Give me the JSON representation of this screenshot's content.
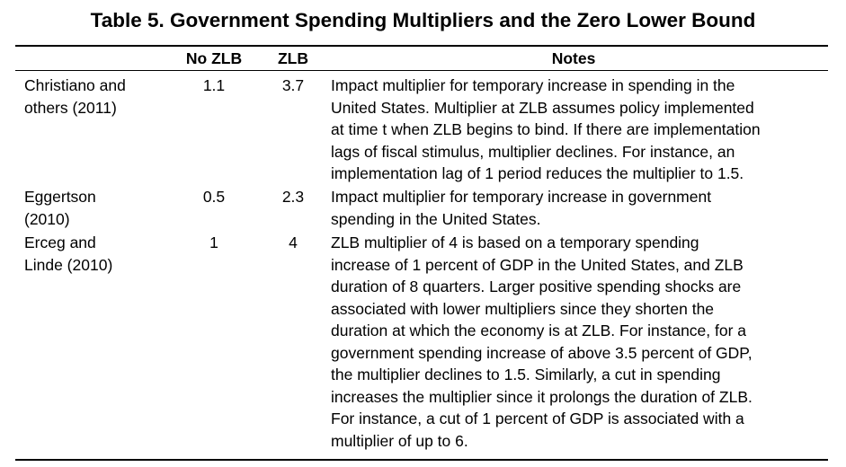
{
  "table": {
    "title": "Table 5. Government Spending Multipliers and the Zero Lower Bound",
    "headers": {
      "study": "",
      "no_zlb": "No ZLB",
      "zlb": "ZLB",
      "notes": "Notes"
    },
    "rows": [
      {
        "study_lines": [
          "Christiano and",
          "others (2011)"
        ],
        "no_zlb": "1.1",
        "zlb": "3.7",
        "notes_lines": [
          "Impact multiplier for temporary increase in spending in the",
          "United States. Multiplier at ZLB assumes policy implemented",
          "at time t when ZLB begins to bind. If there are implementation",
          "lags of fiscal stimulus, multiplier declines. For instance, an",
          "implementation lag of 1 period reduces the multiplier to 1.5."
        ]
      },
      {
        "study_lines": [
          "Eggertson",
          "(2010)"
        ],
        "no_zlb": "0.5",
        "zlb": "2.3",
        "notes_lines": [
          "Impact multiplier for temporary increase in government",
          "spending in the United States."
        ]
      },
      {
        "study_lines": [
          "Erceg and",
          "Linde (2010)"
        ],
        "no_zlb": "1",
        "zlb": "4",
        "notes_lines": [
          "ZLB multiplier of 4 is based on a temporary spending",
          "increase of 1 percent of GDP in the United States, and ZLB",
          "duration of 8 quarters. Larger positive spending shocks are",
          "associated with lower multipliers since they shorten the",
          "duration at which the economy is at ZLB. For instance, for a",
          "government spending increase of above 3.5 percent of GDP,",
          "the multiplier declines to 1.5. Similarly, a cut in spending",
          "increases the multiplier since it prolongs the duration of ZLB.",
          "For instance, a cut of 1 percent of GDP is associated with a",
          "multiplier of up to 6."
        ]
      }
    ]
  }
}
